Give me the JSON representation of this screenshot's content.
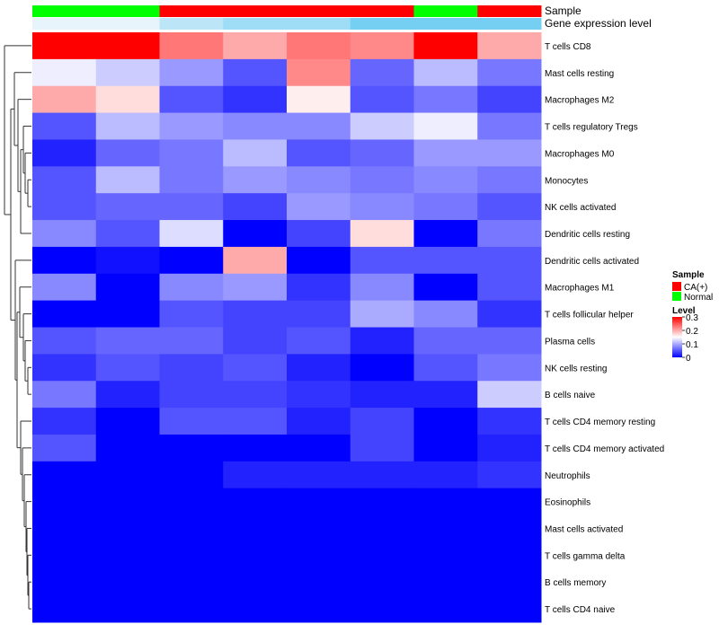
{
  "chart_data": {
    "type": "heatmap",
    "annotation_tracks": [
      {
        "name": "Sample",
        "values": [
          "Normal",
          "Normal",
          "CA(+)",
          "CA(+)",
          "CA(+)",
          "CA(+)",
          "Normal",
          "CA(+)"
        ]
      },
      {
        "name": "Gene expression level",
        "values": [
          0.05,
          0.05,
          0.35,
          0.55,
          0.55,
          0.85,
          0.85,
          0.85
        ]
      }
    ],
    "rows": [
      "T cells CD8",
      "Mast cells resting",
      "Macrophages M2",
      "T cells regulatory  Tregs",
      "Macrophages M0",
      "Monocytes",
      "NK cells activated",
      "Dendritic cells resting",
      "Dendritic cells activated",
      "Macrophages M1",
      "T cells follicular helper",
      "Plasma cells",
      "NK cells resting",
      "B cells naive",
      "T cells CD4 memory resting",
      "T cells CD4 memory activated",
      "Neutrophils",
      "Eosinophils",
      "Mast cells activated",
      "T cells gamma delta",
      "B cells memory",
      "T cells CD4 naive"
    ],
    "values": [
      [
        0.3,
        0.3,
        0.23,
        0.2,
        0.23,
        0.22,
        0.3,
        0.2
      ],
      [
        0.14,
        0.12,
        0.09,
        0.05,
        0.22,
        0.06,
        0.11,
        0.07
      ],
      [
        0.2,
        0.17,
        0.05,
        0.03,
        0.16,
        0.05,
        0.07,
        0.04
      ],
      [
        0.05,
        0.11,
        0.09,
        0.08,
        0.08,
        0.12,
        0.14,
        0.07
      ],
      [
        0.02,
        0.06,
        0.07,
        0.11,
        0.05,
        0.06,
        0.09,
        0.09
      ],
      [
        0.05,
        0.11,
        0.07,
        0.09,
        0.08,
        0.07,
        0.08,
        0.07
      ],
      [
        0.05,
        0.06,
        0.06,
        0.04,
        0.09,
        0.08,
        0.07,
        0.05
      ],
      [
        0.08,
        0.05,
        0.13,
        0.0,
        0.04,
        0.17,
        0.0,
        0.07
      ],
      [
        0.0,
        0.01,
        0.0,
        0.2,
        0.0,
        0.05,
        0.05,
        0.05
      ],
      [
        0.08,
        0.0,
        0.08,
        0.09,
        0.03,
        0.08,
        0.0,
        0.05
      ],
      [
        0.0,
        0.0,
        0.05,
        0.04,
        0.04,
        0.1,
        0.08,
        0.03
      ],
      [
        0.05,
        0.06,
        0.06,
        0.04,
        0.05,
        0.02,
        0.06,
        0.06
      ],
      [
        0.03,
        0.05,
        0.04,
        0.05,
        0.02,
        0.0,
        0.05,
        0.07
      ],
      [
        0.07,
        0.02,
        0.04,
        0.04,
        0.03,
        0.02,
        0.02,
        0.12
      ],
      [
        0.03,
        0.0,
        0.05,
        0.05,
        0.02,
        0.04,
        0.0,
        0.03
      ],
      [
        0.05,
        0.0,
        0.0,
        0.0,
        0.0,
        0.04,
        0.0,
        0.02
      ],
      [
        0.0,
        0.0,
        0.0,
        0.02,
        0.02,
        0.02,
        0.02,
        0.03
      ],
      [
        0.0,
        0.0,
        0.0,
        0.0,
        0.0,
        0.0,
        0.0,
        0.0
      ],
      [
        0.0,
        0.0,
        0.0,
        0.0,
        0.0,
        0.0,
        0.0,
        0.0
      ],
      [
        0.0,
        0.0,
        0.0,
        0.0,
        0.0,
        0.0,
        0.0,
        0.0
      ],
      [
        0.0,
        0.0,
        0.0,
        0.0,
        0.0,
        0.0,
        0.0,
        0.0
      ],
      [
        0.0,
        0.0,
        0.0,
        0.0,
        0.0,
        0.0,
        0.0,
        0.0
      ]
    ],
    "color_scale": {
      "min": 0,
      "mid": 0.15,
      "max": 0.3,
      "low": "#0000ff",
      "mid_color": "#ffffff",
      "high": "#ff0000"
    },
    "sample_colors": {
      "CA(+)": "#ff0000",
      "Normal": "#00ff00"
    },
    "expression_colors": {
      "low": "#eef6fb",
      "high": "#5ec8f2"
    },
    "legend": {
      "sample_title": "Sample",
      "sample_entries": [
        "CA(+)",
        "Normal"
      ],
      "level_title": "Level",
      "level_ticks": [
        "0.3",
        "0.2",
        "0.1",
        "0"
      ],
      "placement": "right"
    },
    "row_dendrogram": true
  }
}
